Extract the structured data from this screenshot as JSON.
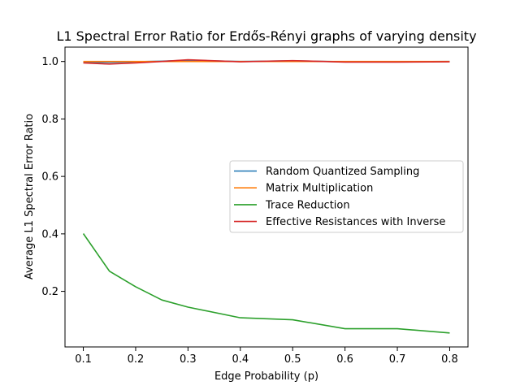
{
  "chart_data": {
    "type": "line",
    "title": "L1 Spectral Error Ratio for Erdős-Rényi graphs of varying density",
    "xlabel": "Edge Probability (p)",
    "ylabel": "Average L1 Spectral Error Ratio",
    "x": [
      0.1,
      0.15,
      0.2,
      0.25,
      0.3,
      0.4,
      0.5,
      0.6,
      0.7,
      0.8
    ],
    "xlim": [
      0.065,
      0.835
    ],
    "ylim": [
      0.0065,
      1.05
    ],
    "xticks": [
      0.1,
      0.2,
      0.3,
      0.4,
      0.5,
      0.6,
      0.7,
      0.8
    ],
    "xtick_labels": [
      "0.1",
      "0.2",
      "0.3",
      "0.4",
      "0.5",
      "0.6",
      "0.7",
      "0.8"
    ],
    "yticks": [
      0.2,
      0.4,
      0.6,
      0.8,
      1.0
    ],
    "ytick_labels": [
      "0.2",
      "0.4",
      "0.6",
      "0.8",
      "1.0"
    ],
    "grid": false,
    "legend_position": "center-right",
    "series": [
      {
        "name": "Random Quantized Sampling",
        "color": "#1f77b4",
        "values": [
          0.998,
          0.997,
          0.999,
          1.001,
          1.004,
          1.0,
          1.002,
          0.999,
          0.999,
          1.0
        ]
      },
      {
        "name": "Matrix Multiplication",
        "color": "#ff7f0e",
        "values": [
          1.0,
          1.0,
          1.0,
          1.0,
          1.0,
          1.0,
          1.0,
          1.0,
          1.0,
          1.0
        ]
      },
      {
        "name": "Trace Reduction",
        "color": "#2ca02c",
        "values": [
          0.401,
          0.27,
          0.216,
          0.17,
          0.145,
          0.108,
          0.101,
          0.07,
          0.07,
          0.055
        ]
      },
      {
        "name": "Effective Resistances with Inverse",
        "color": "#d62728",
        "values": [
          0.995,
          0.991,
          0.995,
          1.0,
          1.006,
          0.999,
          1.003,
          0.998,
          0.998,
          0.999
        ]
      }
    ]
  }
}
